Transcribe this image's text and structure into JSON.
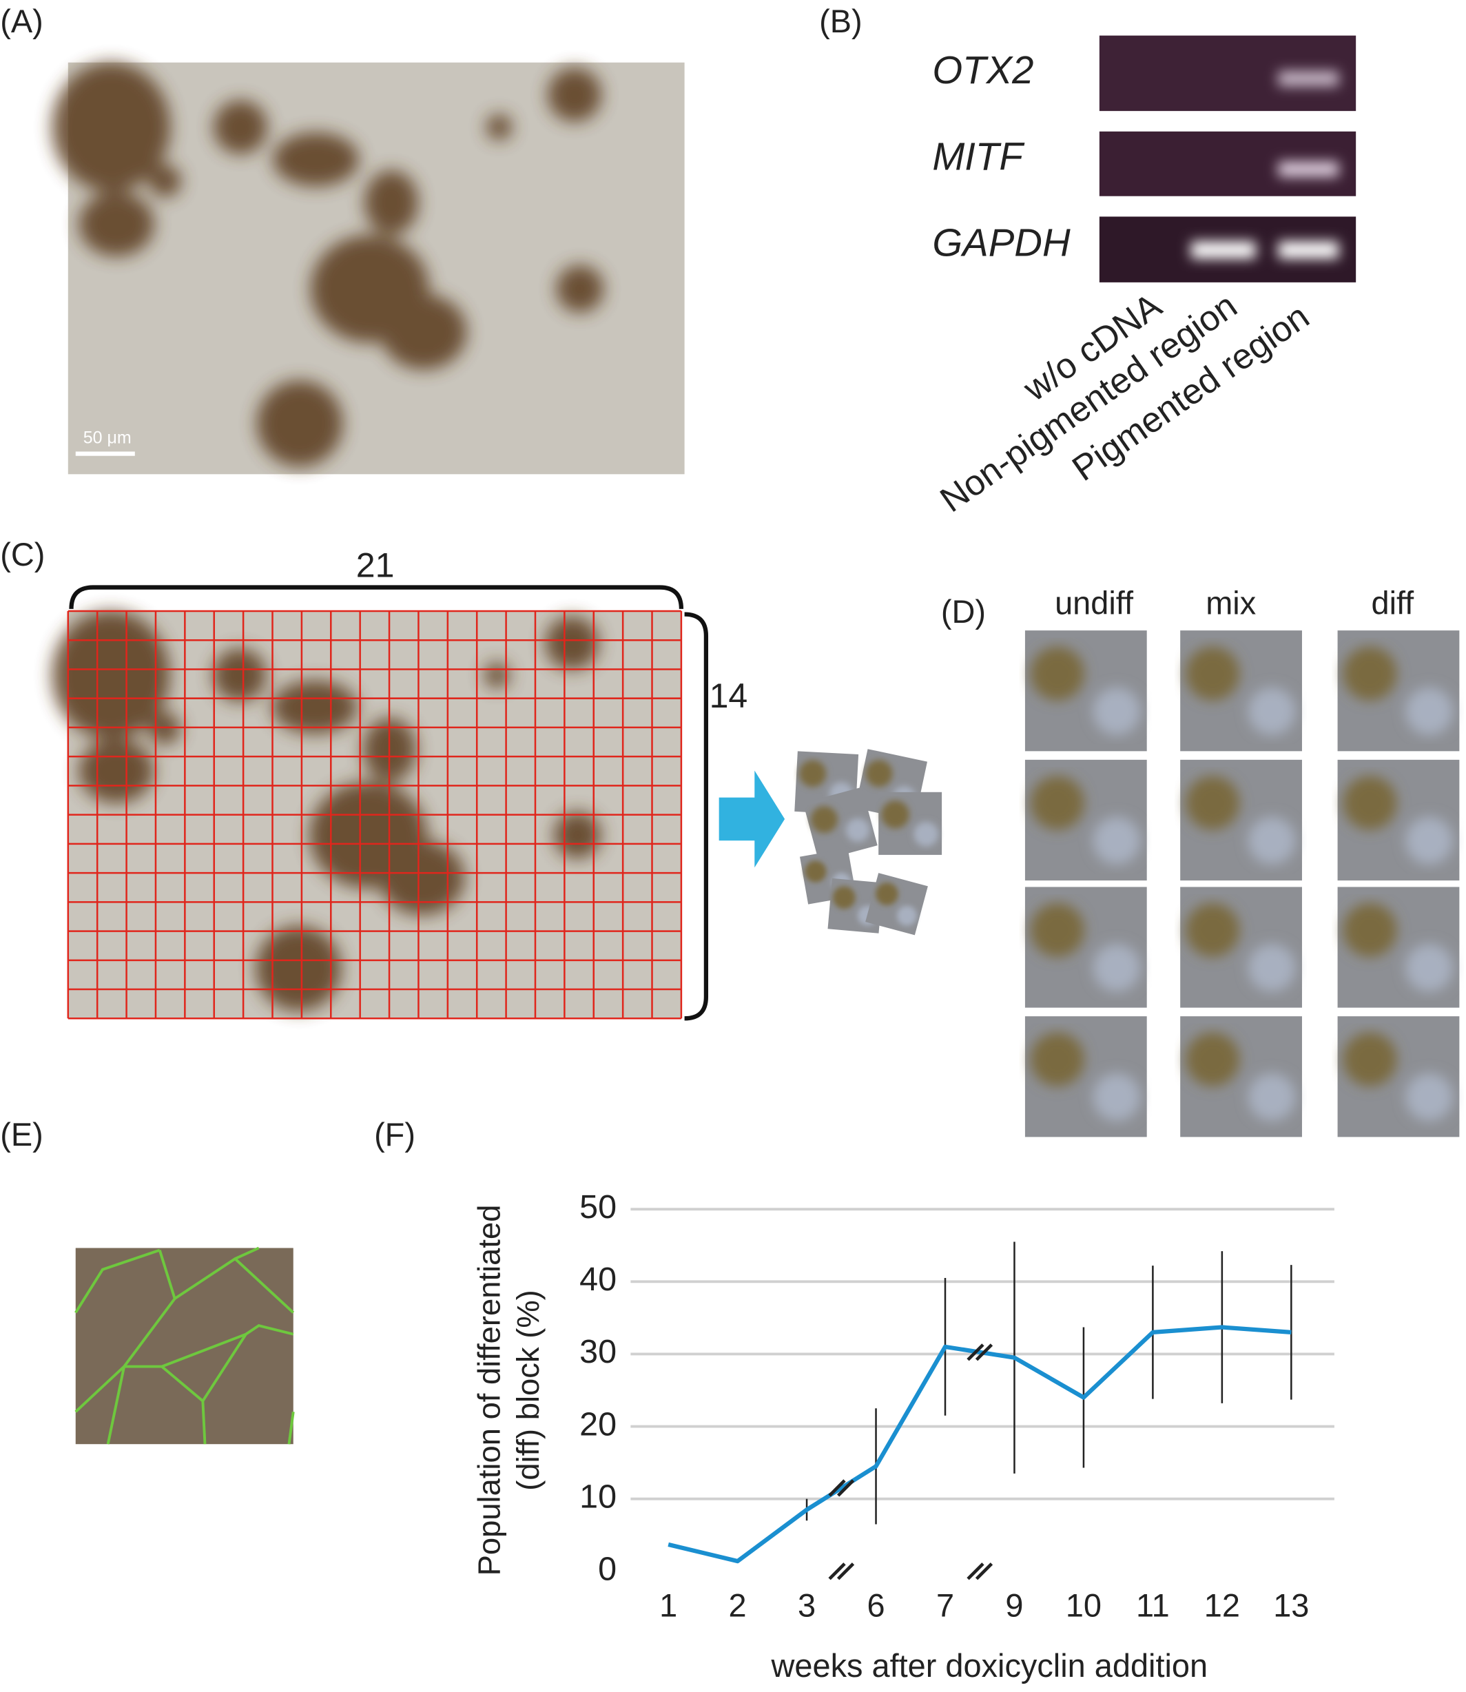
{
  "panels": {
    "a": {
      "label": "(A)",
      "scale_bar": "50 μm"
    },
    "b": {
      "label": "(B)",
      "genes": [
        "OTX2",
        "MITF",
        "GAPDH"
      ],
      "lanes": [
        "w/o cDNA",
        "Non-pigmented region",
        "Pigmented region"
      ]
    },
    "c": {
      "label": "(C)",
      "columns": 21,
      "rows": 14
    },
    "d": {
      "label": "(D)",
      "columns": [
        "undiff",
        "mix",
        "diff"
      ]
    },
    "e": {
      "label": "(E)"
    },
    "f": {
      "label": "(F)"
    }
  },
  "chart_data": {
    "type": "line",
    "y_label": [
      "Population of differentiated",
      "(diff) block (%)"
    ],
    "x_label": "weeks after doxicyclin addition",
    "categories": [
      "1",
      "2",
      "3",
      "6",
      "7",
      "9",
      "10",
      "11",
      "12",
      "13"
    ],
    "series": [
      {
        "color": "#1a8fd0",
        "values": [
          3.7,
          1.4,
          8.5,
          14.5,
          31,
          29.5,
          24,
          33,
          33.7,
          33
        ],
        "errors": [
          null,
          null,
          1.5,
          8,
          9.5,
          16,
          9.7,
          9.2,
          10.5,
          9.3
        ]
      }
    ],
    "ylim": [
      0,
      50
    ],
    "yticks": [
      0,
      10,
      20,
      30,
      40,
      50
    ],
    "grid": true
  }
}
